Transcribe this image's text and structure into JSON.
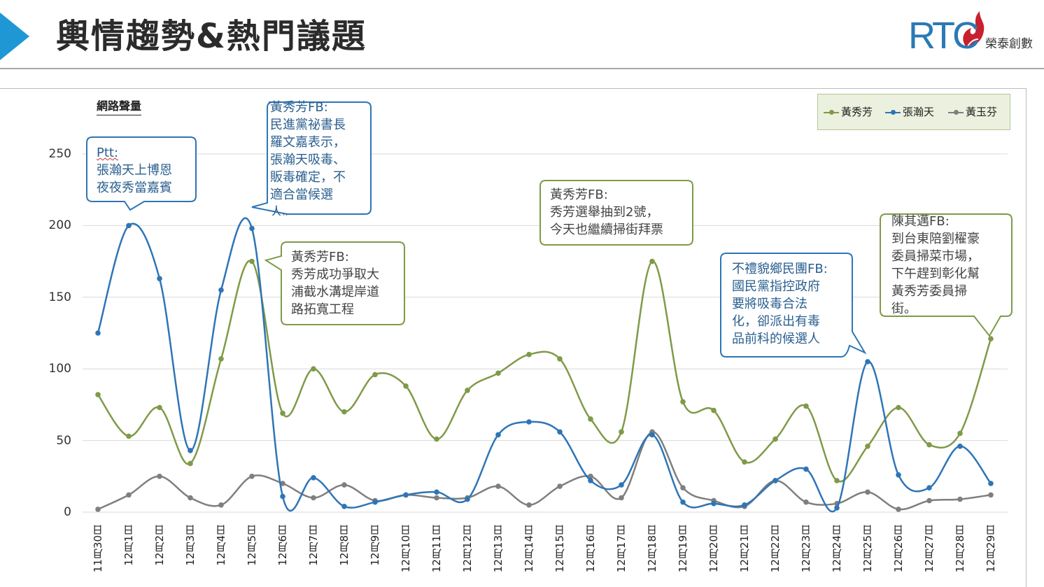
{
  "header": {
    "title": "輿情趨勢&熱門議題",
    "logo_text": "RTC",
    "logo_subtext": "榮泰創數"
  },
  "colors": {
    "accent": "#1f97d4",
    "huang_xiufang": "#7f9a48",
    "zhang_hantian": "#2e75b6",
    "huang_yufen": "#7f7f7f",
    "legend_bg": "#ebf1de"
  },
  "chart_data": {
    "type": "line",
    "title": "",
    "ylabel": "網路聲量",
    "xlabel": "",
    "ylim": [
      0,
      250
    ],
    "yticks": [
      "0",
      "50",
      "100",
      "150",
      "200",
      "250"
    ],
    "legend_position": "top-right",
    "categories": [
      "11月30日",
      "12月1日",
      "12月2日",
      "12月3日",
      "12月4日",
      "12月5日",
      "12月6日",
      "12月7日",
      "12月8日",
      "12月9日",
      "12月10日",
      "12月11日",
      "12月12日",
      "12月13日",
      "12月14日",
      "12月15日",
      "12月16日",
      "12月17日",
      "12月18日",
      "12月19日",
      "12月20日",
      "12月21日",
      "12月22日",
      "12月23日",
      "12月24日",
      "12月25日",
      "12月26日",
      "12月27日",
      "12月28日",
      "12月29日"
    ],
    "series": [
      {
        "name": "黃秀芳",
        "values": [
          82,
          53,
          73,
          34,
          107,
          175,
          69,
          100,
          70,
          96,
          88,
          51,
          85,
          97,
          110,
          107,
          65,
          56,
          175,
          77,
          71,
          35,
          51,
          74,
          22,
          46,
          73,
          47,
          55,
          121
        ]
      },
      {
        "name": "張瀚天",
        "values": [
          125,
          200,
          163,
          43,
          155,
          198,
          11,
          24,
          4,
          7,
          12,
          14,
          9,
          54,
          63,
          56,
          22,
          19,
          54,
          7,
          6,
          5,
          22,
          30,
          3,
          105,
          26,
          17,
          46,
          20
        ]
      },
      {
        "name": "黃玉芬",
        "values": [
          2,
          12,
          25,
          10,
          5,
          25,
          20,
          10,
          19,
          8,
          12,
          10,
          10,
          18,
          5,
          18,
          25,
          10,
          56,
          17,
          8,
          4,
          22,
          7,
          6,
          14,
          2,
          8,
          9,
          12
        ]
      }
    ],
    "annotations": [
      {
        "source": "Ptt:",
        "text": "張瀚天上博恩\n夜夜秀當嘉賓"
      },
      {
        "source": "黃秀芳FB:",
        "text": "民進黨祕書長\n羅文嘉表示，\n張瀚天吸毒、\n販毒確定，不\n適合當候選\n人。"
      },
      {
        "source": "黃秀芳FB:",
        "text": "秀芳成功爭取大\n浦截水溝堤岸道\n路拓寬工程"
      },
      {
        "source": "黃秀芳FB:",
        "text": "秀芳選舉抽到2號，\n今天也繼續掃街拜票"
      },
      {
        "source": "不禮貌鄉民團FB:",
        "text": "國民黨指控政府\n要將吸毒合法\n化，卻派出有毒\n品前科的候選人"
      },
      {
        "source": "陳其邁FB:",
        "text": "到台東陪劉櫂豪\n委員掃菜市場，\n下午趕到彰化幫\n黃秀芳委員掃\n街。"
      }
    ]
  }
}
